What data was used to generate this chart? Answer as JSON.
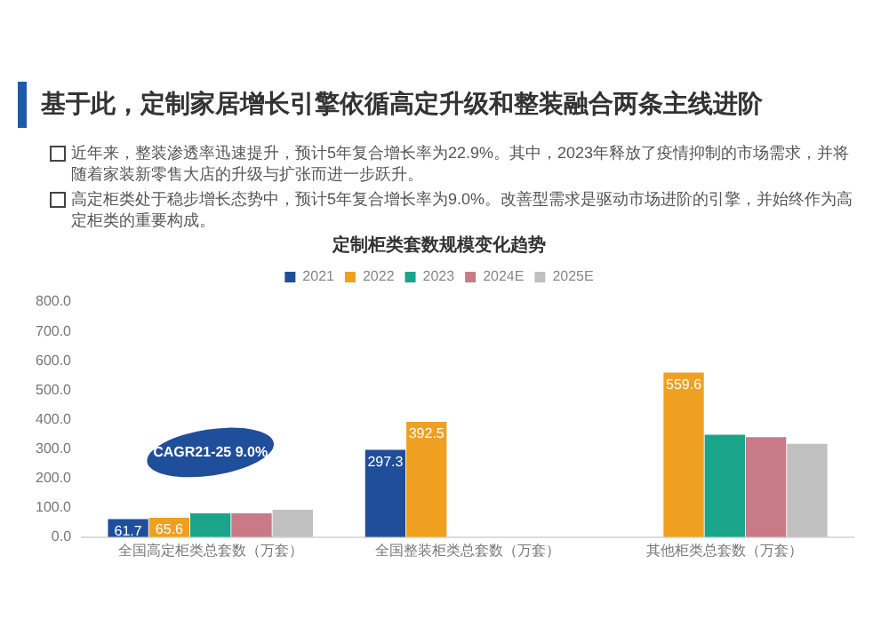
{
  "chart_data": {
    "type": "bar",
    "title": "定制柜类套数规模变化趋势",
    "subtitle": "基于此，定制家居增长引擎依循高定升级和整装融合两条主线进阶",
    "annotations": [
      "近年来，整装渗透率迅速提升，预计5年复合增长率为22.9%。其中，2023年释放了疫情抑制的市场需求，并将随着家装新零售大店的升级与扩张而进一步跃升。",
      "高定柜类处于稳步增长态势中，预计5年复合增长率为9.0%。改善型需求是驱动市场进阶的引擎，并始终作为高定柜类的重要构成。",
      "CAGR21-25 9.0%"
    ],
    "categories": [
      "全国高定柜类总套数（万套）",
      "全国整装柜类总套数（万套）",
      "其他柜类总套数（万套）"
    ],
    "series": [
      {
        "name": "2021",
        "color": "#1f4e9a",
        "values": [
          61.7,
          297.3,
          null
        ],
        "value_labels": [
          "61.7",
          "297.3",
          null
        ]
      },
      {
        "name": "2022",
        "color": "#f0a020",
        "values": [
          65.6,
          392.5,
          559.6
        ],
        "value_labels": [
          "65.6",
          "392.5",
          "559.6"
        ]
      },
      {
        "name": "2023",
        "color": "#1aa58a",
        "values": [
          81,
          null,
          348
        ]
      },
      {
        "name": "2024E",
        "color": "#c87a86",
        "values": [
          81,
          null,
          340
        ]
      },
      {
        "name": "2025E",
        "color": "#c0c0c0",
        "values": [
          93,
          null,
          317
        ]
      }
    ],
    "ylim": [
      0,
      800
    ],
    "yticks": [
      {
        "value": 0,
        "label": "0.0"
      },
      {
        "value": 100,
        "label": "100.0"
      },
      {
        "value": 200,
        "label": "200.0"
      },
      {
        "value": 300,
        "label": "300.0"
      },
      {
        "value": 400,
        "label": "400.0"
      },
      {
        "value": 500,
        "label": "500.0"
      },
      {
        "value": 600,
        "label": "600.0"
      },
      {
        "value": 700,
        "label": "700.0"
      },
      {
        "value": 800,
        "label": "800.0"
      }
    ],
    "grid": false,
    "legend": "top"
  }
}
